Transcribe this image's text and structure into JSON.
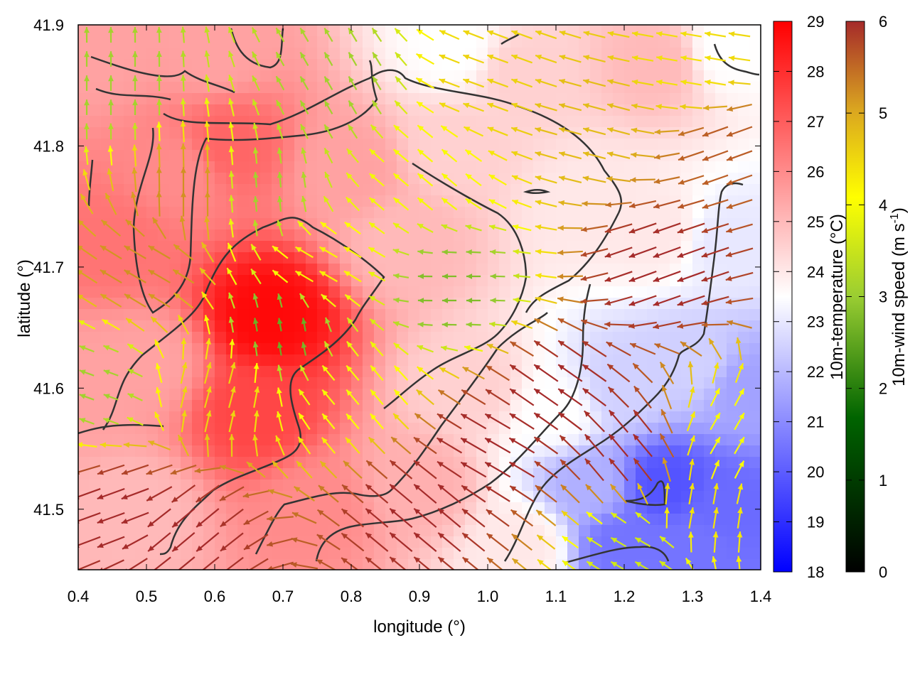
{
  "chart_data": {
    "type": "heatmap",
    "title": "",
    "xlabel": "longitude (°)",
    "ylabel": "latitude (°)",
    "xlim": [
      0.4,
      1.4
    ],
    "ylim": [
      41.45,
      41.9
    ],
    "x_ticks": [
      "0.4",
      "0.5",
      "0.6",
      "0.7",
      "0.8",
      "0.9",
      "1.0",
      "1.1",
      "1.2",
      "1.3",
      "1.4"
    ],
    "y_ticks": [
      "41.5",
      "41.6",
      "41.7",
      "41.8",
      "41.9"
    ],
    "grid": false,
    "temperature_colorbar": {
      "label": "10m-temperature (°C)",
      "range": [
        18,
        29
      ],
      "ticks": [
        "18",
        "19",
        "20",
        "21",
        "22",
        "23",
        "24",
        "25",
        "26",
        "27",
        "28",
        "29"
      ],
      "colors": [
        "#0000ff",
        "#ffffff",
        "#ff0000"
      ]
    },
    "wind_colorbar": {
      "label": "10m-wind speed (m s",
      "label_sup": "-1",
      "label_end": ")",
      "range": [
        0,
        6
      ],
      "ticks": [
        "0",
        "1",
        "2",
        "3",
        "4",
        "5",
        "6"
      ],
      "colors": [
        "#000000",
        "#006400",
        "#9acd32",
        "#ffff00",
        "#daa520",
        "#a52a2a"
      ]
    },
    "temperature_field": [
      {
        "lon": 0.45,
        "lat": 41.72,
        "value": 26.5
      },
      {
        "lon": 0.55,
        "lat": 41.78,
        "value": 26.0
      },
      {
        "lon": 0.62,
        "lat": 41.8,
        "value": 26.8
      },
      {
        "lon": 0.68,
        "lat": 41.66,
        "value": 28.8
      },
      {
        "lon": 0.66,
        "lat": 41.58,
        "value": 27.5
      },
      {
        "lon": 0.5,
        "lat": 41.62,
        "value": 25.5
      },
      {
        "lon": 0.48,
        "lat": 41.5,
        "value": 25.0
      },
      {
        "lon": 0.6,
        "lat": 41.88,
        "value": 25.5
      },
      {
        "lon": 0.75,
        "lat": 41.5,
        "value": 26.0
      },
      {
        "lon": 0.88,
        "lat": 41.72,
        "value": 25.0
      },
      {
        "lon": 0.8,
        "lat": 41.78,
        "value": 25.5
      },
      {
        "lon": 0.95,
        "lat": 41.8,
        "value": 24.5
      },
      {
        "lon": 1.05,
        "lat": 41.86,
        "value": 24.5
      },
      {
        "lon": 1.25,
        "lat": 41.87,
        "value": 25.0
      },
      {
        "lon": 1.35,
        "lat": 41.88,
        "value": 23.5
      },
      {
        "lon": 0.95,
        "lat": 41.88,
        "value": 23.5
      },
      {
        "lon": 1.15,
        "lat": 41.75,
        "value": 24.0
      },
      {
        "lon": 0.98,
        "lat": 41.6,
        "value": 24.5
      },
      {
        "lon": 0.9,
        "lat": 41.52,
        "value": 25.2
      },
      {
        "lon": 1.1,
        "lat": 41.58,
        "value": 23.5
      },
      {
        "lon": 1.05,
        "lat": 41.47,
        "value": 24.0
      },
      {
        "lon": 1.25,
        "lat": 41.73,
        "value": 24.0
      },
      {
        "lon": 1.35,
        "lat": 41.72,
        "value": 23.0
      },
      {
        "lon": 1.3,
        "lat": 41.62,
        "value": 22.5
      },
      {
        "lon": 1.38,
        "lat": 41.6,
        "value": 21.5
      },
      {
        "lon": 1.26,
        "lat": 41.52,
        "value": 19.8
      },
      {
        "lon": 1.35,
        "lat": 41.5,
        "value": 20.3
      },
      {
        "lon": 1.2,
        "lat": 41.47,
        "value": 20.5
      },
      {
        "lon": 1.3,
        "lat": 41.47,
        "value": 20.5
      },
      {
        "lon": 1.15,
        "lat": 41.52,
        "value": 21.8
      },
      {
        "lon": 1.2,
        "lat": 41.6,
        "value": 22.5
      },
      {
        "lon": 0.42,
        "lat": 41.88,
        "value": 25.5
      },
      {
        "lon": 0.42,
        "lat": 41.6,
        "value": 25.5
      }
    ],
    "wind_field": [
      {
        "lon": 0.45,
        "lat": 41.5,
        "dir": 200,
        "speed": 6.0
      },
      {
        "lon": 0.55,
        "lat": 41.48,
        "dir": 220,
        "speed": 6.0
      },
      {
        "lon": 0.5,
        "lat": 41.7,
        "dir": 150,
        "speed": 5.0
      },
      {
        "lon": 0.56,
        "lat": 41.76,
        "dir": 90,
        "speed": 5.0
      },
      {
        "lon": 0.6,
        "lat": 41.6,
        "dir": 75,
        "speed": 4.2
      },
      {
        "lon": 0.7,
        "lat": 41.65,
        "dir": 100,
        "speed": 2.0
      },
      {
        "lon": 0.67,
        "lat": 41.76,
        "dir": 95,
        "speed": 2.5
      },
      {
        "lon": 0.75,
        "lat": 41.7,
        "dir": 150,
        "speed": 3.8
      },
      {
        "lon": 0.8,
        "lat": 41.6,
        "dir": 130,
        "speed": 3.5
      },
      {
        "lon": 0.95,
        "lat": 41.68,
        "dir": 180,
        "speed": 2.2
      },
      {
        "lon": 0.9,
        "lat": 41.78,
        "dir": 140,
        "speed": 3.5
      },
      {
        "lon": 0.78,
        "lat": 41.85,
        "dir": 120,
        "speed": 2.5
      },
      {
        "lon": 1.0,
        "lat": 41.85,
        "dir": 160,
        "speed": 4.2
      },
      {
        "lon": 1.15,
        "lat": 41.82,
        "dir": 165,
        "speed": 4.5
      },
      {
        "lon": 1.3,
        "lat": 41.86,
        "dir": 170,
        "speed": 4.0
      },
      {
        "lon": 1.35,
        "lat": 41.8,
        "dir": 200,
        "speed": 5.5
      },
      {
        "lon": 1.25,
        "lat": 41.7,
        "dir": 200,
        "speed": 6.0
      },
      {
        "lon": 1.1,
        "lat": 41.6,
        "dir": 145,
        "speed": 6.0
      },
      {
        "lon": 1.0,
        "lat": 41.55,
        "dir": 150,
        "speed": 6.0
      },
      {
        "lon": 0.9,
        "lat": 41.5,
        "dir": 140,
        "speed": 6.0
      },
      {
        "lon": 1.2,
        "lat": 41.55,
        "dir": 130,
        "speed": 6.0
      },
      {
        "lon": 1.3,
        "lat": 41.5,
        "dir": 80,
        "speed": 4.0
      },
      {
        "lon": 1.22,
        "lat": 41.47,
        "dir": 150,
        "speed": 3.0
      },
      {
        "lon": 1.36,
        "lat": 41.56,
        "dir": 60,
        "speed": 3.5
      },
      {
        "lon": 0.42,
        "lat": 41.6,
        "dir": 160,
        "speed": 2.5
      },
      {
        "lon": 0.45,
        "lat": 41.85,
        "dir": 90,
        "speed": 2.5
      }
    ]
  }
}
